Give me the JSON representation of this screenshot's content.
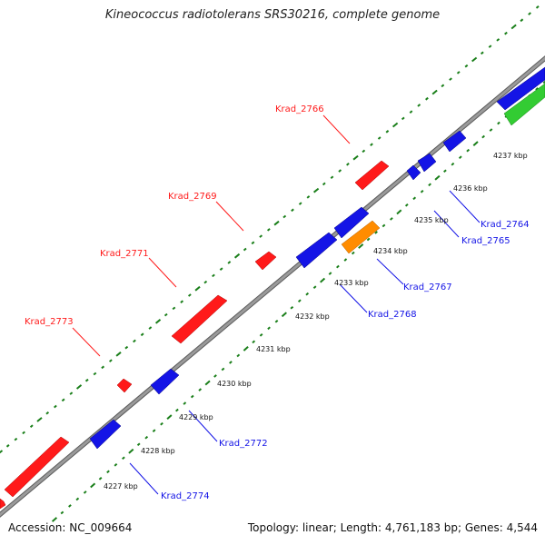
{
  "title": "Kineococcus radiotolerans SRS30216, complete genome",
  "footer": {
    "accession": "Accession: NC_009664",
    "summary": "Topology: linear; Length: 4,761,183 bp; Genes: 4,544"
  },
  "colors": {
    "forward_gene": "#ff1a1a",
    "reverse_gene": "#1414e6",
    "highlight_gene": "#ff8c00",
    "rna_gene": "#33cc33",
    "backbone": "#8a8a8a",
    "scale_ticks": "#1a7f1a"
  },
  "kbp_labels": [
    "4227 kbp",
    "4228 kbp",
    "4229 kbp",
    "4230 kbp",
    "4231 kbp",
    "4232 kbp",
    "4233 kbp",
    "4234 kbp",
    "4235 kbp",
    "4236 kbp",
    "4237 kbp"
  ],
  "forward_gene_labels": [
    "Krad_2766",
    "Krad_2769",
    "Krad_2771",
    "Krad_2773"
  ],
  "reverse_gene_labels": [
    "Krad_2764",
    "Krad_2765",
    "Krad_2767",
    "Krad_2768",
    "Krad_2772",
    "Krad_2774"
  ]
}
